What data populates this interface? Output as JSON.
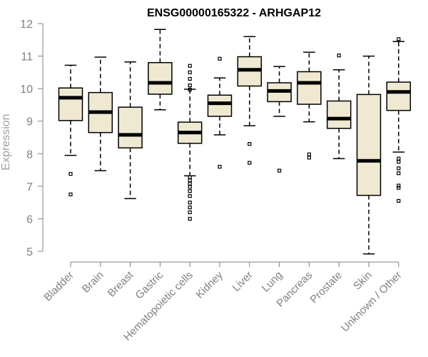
{
  "chart_data": {
    "type": "boxplot",
    "title": "ENSG00000165322 - ARHGAP12",
    "xlabel": "",
    "ylabel": "Expression",
    "ylim": [
      5,
      12
    ],
    "yticks": [
      5,
      6,
      7,
      8,
      9,
      10,
      11,
      12
    ],
    "grid": false,
    "legend": "none",
    "box_fill": "#efe9d2",
    "box_stroke": "#000000",
    "axis_color": "#808080",
    "categories": [
      "Bladder",
      "Brain",
      "Breast",
      "Gastric",
      "Hematopoietic cells",
      "Kidney",
      "Liver",
      "Lung",
      "Pancreas",
      "Prostate",
      "Skin",
      "Unknown / Other"
    ],
    "boxes": [
      {
        "category": "Bladder",
        "whisker_low": 7.95,
        "q1": 9.02,
        "median": 9.72,
        "q3": 10.02,
        "whisker_high": 10.72,
        "outliers": [
          7.38,
          6.75
        ]
      },
      {
        "category": "Brain",
        "whisker_low": 7.48,
        "q1": 8.65,
        "median": 9.28,
        "q3": 9.88,
        "whisker_high": 10.97,
        "outliers": []
      },
      {
        "category": "Breast",
        "whisker_low": 6.62,
        "q1": 8.18,
        "median": 8.58,
        "q3": 9.43,
        "whisker_high": 10.82,
        "outliers": []
      },
      {
        "category": "Gastric",
        "whisker_low": 9.35,
        "q1": 9.83,
        "median": 10.18,
        "q3": 10.8,
        "whisker_high": 11.82,
        "outliers": []
      },
      {
        "category": "Hematopoietic cells",
        "whisker_low": 7.32,
        "q1": 8.32,
        "median": 8.65,
        "q3": 8.97,
        "whisker_high": 9.98,
        "outliers": [
          10.7,
          10.5,
          10.3,
          10.1,
          9.97,
          7.28,
          7.18,
          7.08,
          6.98,
          6.85,
          6.7,
          6.5,
          6.35,
          6.2,
          6.0
        ]
      },
      {
        "category": "Kidney",
        "whisker_low": 8.58,
        "q1": 9.15,
        "median": 9.55,
        "q3": 9.8,
        "whisker_high": 10.33,
        "outliers": [
          10.92,
          7.6
        ]
      },
      {
        "category": "Liver",
        "whisker_low": 8.86,
        "q1": 10.08,
        "median": 10.58,
        "q3": 10.98,
        "whisker_high": 11.6,
        "outliers": [
          8.3,
          7.72
        ]
      },
      {
        "category": "Lung",
        "whisker_low": 9.15,
        "q1": 9.6,
        "median": 9.93,
        "q3": 10.18,
        "whisker_high": 10.68,
        "outliers": [
          7.48
        ]
      },
      {
        "category": "Pancreas",
        "whisker_low": 8.98,
        "q1": 9.52,
        "median": 10.18,
        "q3": 10.52,
        "whisker_high": 11.12,
        "outliers": [
          7.98,
          7.88
        ]
      },
      {
        "category": "Prostate",
        "whisker_low": 7.85,
        "q1": 8.78,
        "median": 9.08,
        "q3": 9.62,
        "whisker_high": 10.58,
        "outliers": [
          11.02
        ]
      },
      {
        "category": "Skin",
        "whisker_low": 4.92,
        "q1": 6.72,
        "median": 7.78,
        "q3": 9.82,
        "whisker_high": 11.0,
        "outliers": []
      },
      {
        "category": "Unknown / Other",
        "whisker_low": 8.05,
        "q1": 9.33,
        "median": 9.9,
        "q3": 10.2,
        "whisker_high": 11.45,
        "outliers": [
          11.52,
          7.85,
          7.75,
          7.55,
          7.4,
          7.02,
          6.95,
          6.55
        ]
      }
    ]
  }
}
